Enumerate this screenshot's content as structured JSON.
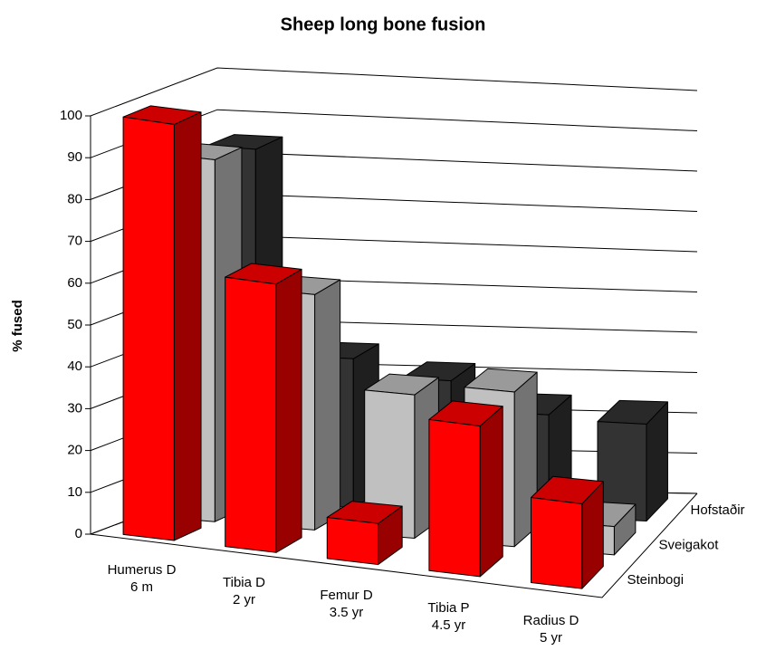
{
  "chart_data": {
    "type": "bar3d",
    "title": "Sheep long bone fusion",
    "y_label": "% fused",
    "categories": [
      [
        "Humerus D",
        "6 m"
      ],
      [
        "Tibia D",
        "2 yr"
      ],
      [
        "Femur D",
        "3.5 yr"
      ],
      [
        "Tibia P",
        "4.5 yr"
      ],
      [
        "Radius D",
        "5 yr"
      ]
    ],
    "series": [
      {
        "name": "Steinbogi",
        "color": "#ff0000",
        "values": [
          100,
          65,
          10,
          37,
          21
        ]
      },
      {
        "name": "Sveigakot",
        "color": "#c0c0c0",
        "values": [
          87,
          57,
          35,
          38,
          7
        ]
      },
      {
        "name": "Hofstaðir",
        "color": "#333333",
        "values": [
          85,
          36,
          32,
          25,
          24
        ]
      }
    ],
    "ylim": [
      0,
      100
    ],
    "yticks": [
      0,
      10,
      20,
      30,
      40,
      50,
      60,
      70,
      80,
      90,
      100
    ],
    "grid": true
  }
}
